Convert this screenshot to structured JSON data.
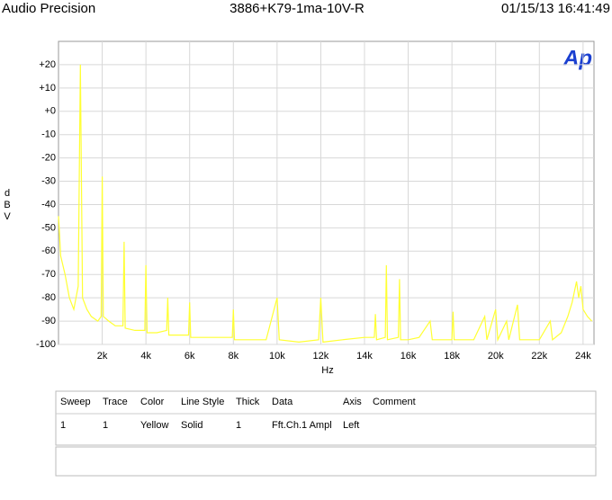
{
  "header": {
    "brand": "Audio Precision",
    "title": "3886+K79-1ma-10V-R",
    "timestamp": "01/15/13 16:41:49"
  },
  "logo": "Ap",
  "chart_data": {
    "type": "line",
    "ylabel": "dBV",
    "xlabel": "Hz",
    "xlim": [
      0,
      24500
    ],
    "ylim": [
      -100,
      30
    ],
    "xticks": [
      {
        "value": 2000,
        "label": "2k"
      },
      {
        "value": 4000,
        "label": "4k"
      },
      {
        "value": 6000,
        "label": "6k"
      },
      {
        "value": 8000,
        "label": "8k"
      },
      {
        "value": 10000,
        "label": "10k"
      },
      {
        "value": 12000,
        "label": "12k"
      },
      {
        "value": 14000,
        "label": "14k"
      },
      {
        "value": 16000,
        "label": "16k"
      },
      {
        "value": 18000,
        "label": "18k"
      },
      {
        "value": 20000,
        "label": "20k"
      },
      {
        "value": 22000,
        "label": "22k"
      },
      {
        "value": 24000,
        "label": "24k"
      }
    ],
    "yticks": [
      {
        "value": 20,
        "label": "+20"
      },
      {
        "value": 10,
        "label": "+10"
      },
      {
        "value": 0,
        "label": "+0"
      },
      -10,
      -20,
      -30,
      -40,
      -50,
      -60,
      -70,
      -80,
      -90,
      -100
    ],
    "grid": true,
    "x": [
      0,
      100,
      300,
      500,
      700,
      900,
      1000,
      1100,
      1300,
      1500,
      1800,
      1950,
      2000,
      2050,
      2300,
      2600,
      2950,
      3000,
      3050,
      3500,
      3950,
      4000,
      4050,
      4500,
      4950,
      5000,
      5050,
      5500,
      5950,
      6000,
      6050,
      7000,
      7950,
      8000,
      8050,
      9000,
      9500,
      10000,
      10100,
      11000,
      11900,
      12000,
      12100,
      13000,
      14000,
      14450,
      14500,
      14550,
      14950,
      15000,
      15050,
      15550,
      15600,
      15650,
      16000,
      16500,
      17000,
      17100,
      18000,
      18050,
      18100,
      19000,
      19500,
      19600,
      20000,
      20100,
      20500,
      20600,
      21000,
      21100,
      22000,
      22500,
      22600,
      23000,
      23300,
      23500,
      23700,
      23800,
      23900,
      24000,
      24200,
      24400
    ],
    "series": [
      {
        "color": "#ffff33",
        "values": [
          -45,
          -62,
          -70,
          -80,
          -85,
          -75,
          20,
          -80,
          -85,
          -88,
          -90,
          -88,
          -28,
          -88,
          -90,
          -92,
          -92,
          -56,
          -93,
          -94,
          -94,
          -66,
          -95,
          -95,
          -94,
          -80,
          -96,
          -96,
          -96,
          -82,
          -97,
          -97,
          -97,
          -85,
          -98,
          -98,
          -98,
          -80,
          -98,
          -99,
          -98,
          -80,
          -99,
          -98,
          -97,
          -97,
          -87,
          -98,
          -97,
          -66,
          -98,
          -97,
          -72,
          -98,
          -98,
          -97,
          -90,
          -98,
          -98,
          -86,
          -98,
          -98,
          -88,
          -98,
          -85,
          -98,
          -90,
          -98,
          -83,
          -98,
          -98,
          -90,
          -98,
          -95,
          -88,
          -82,
          -73,
          -80,
          -75,
          -85,
          -88,
          -90
        ]
      }
    ]
  },
  "legend_table": {
    "columns": [
      "Sweep",
      "Trace",
      "Color",
      "Line Style",
      "Thick",
      "Data",
      "Axis",
      "Comment"
    ],
    "rows": [
      [
        "1",
        "1",
        "Yellow",
        "Solid",
        "1",
        "Fft.Ch.1 Ampl",
        "Left",
        ""
      ]
    ]
  }
}
